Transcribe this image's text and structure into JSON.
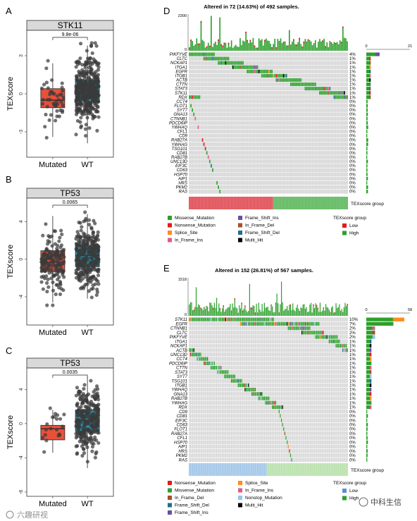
{
  "panels": {
    "A": "A",
    "B": "B",
    "C": "C",
    "D": "D",
    "E": "E"
  },
  "boxplots": [
    {
      "id": "A",
      "title": "STK11",
      "ylabel": "TEXscore",
      "pvalue": "9.8e-06",
      "groups": [
        "Mutated",
        "WT"
      ],
      "yticks": [
        {
          "value": 3,
          "label": "3"
        },
        {
          "value": 0,
          "label": "0"
        },
        {
          "value": -3,
          "label": "-3"
        }
      ],
      "ylim": [
        -5,
        5
      ],
      "boxes": [
        {
          "q1": -1.1,
          "median": -0.5,
          "q3": 0.4,
          "lo": -3.4,
          "hi": 2.4,
          "color": "#e8503a",
          "n": 45
        },
        {
          "q1": -0.6,
          "median": 0.2,
          "q3": 1.1,
          "lo": -3.9,
          "hi": 3.8,
          "color": "#2a9bb5",
          "n": 420
        }
      ]
    },
    {
      "id": "B",
      "title": "TP53",
      "ylabel": "TEXscore",
      "pvalue": "0.0065",
      "groups": [
        "Mutated",
        "WT"
      ],
      "yticks": [
        {
          "value": 4,
          "label": "4"
        },
        {
          "value": 0,
          "label": "0"
        },
        {
          "value": -4,
          "label": "-4"
        }
      ],
      "ylim": [
        -7,
        6.5
      ],
      "boxes": [
        {
          "q1": -1.3,
          "median": -0.3,
          "q3": 0.9,
          "lo": -4.6,
          "hi": 4.6,
          "color": "#e8503a",
          "n": 170
        },
        {
          "q1": -0.8,
          "median": 0.4,
          "q3": 1.5,
          "lo": -4.2,
          "hi": 4.8,
          "color": "#2a9bb5",
          "n": 300
        }
      ]
    },
    {
      "id": "C",
      "title": "TP53",
      "ylabel": "TEXscore",
      "pvalue": "0.0035",
      "groups": [
        "Mutated",
        "WT"
      ],
      "yticks": [
        {
          "value": 4,
          "label": "4"
        },
        {
          "value": 0,
          "label": "0"
        },
        {
          "value": -4,
          "label": "-4"
        },
        {
          "value": -8,
          "label": "-8"
        }
      ],
      "ylim": [
        -8.5,
        6.5
      ],
      "boxes": [
        {
          "q1": -1.9,
          "median": -0.6,
          "q3": -0.2,
          "lo": -3.4,
          "hi": 1.6,
          "color": "#e8503a",
          "n": 20
        },
        {
          "q1": -0.9,
          "median": 0.4,
          "q3": 1.6,
          "lo": -5.2,
          "hi": 5.5,
          "color": "#2a9bb5",
          "n": 280
        }
      ]
    }
  ],
  "oncoplots": [
    {
      "id": "D",
      "title": "Altered in 72 (14.63%) of 492 samples.",
      "top_max": "2300",
      "top_zero": "0",
      "right_min": "0",
      "right_max": "21",
      "genes": [
        {
          "name": "PIKFYVE",
          "pct": "4%"
        },
        {
          "name": "CLTC",
          "pct": "1%"
        },
        {
          "name": "NCKAP1",
          "pct": "1%"
        },
        {
          "name": "ITGA1",
          "pct": "1%"
        },
        {
          "name": "EGFR",
          "pct": "1%"
        },
        {
          "name": "ITGB1",
          "pct": "1%"
        },
        {
          "name": "ACTB",
          "pct": "1%"
        },
        {
          "name": "CTTN",
          "pct": "1%"
        },
        {
          "name": "STAT3",
          "pct": "1%"
        },
        {
          "name": "STK11",
          "pct": "1%"
        },
        {
          "name": "RDX",
          "pct": "1%"
        },
        {
          "name": "CCT4",
          "pct": "0%"
        },
        {
          "name": "FLOT1",
          "pct": "0%"
        },
        {
          "name": "SYT7",
          "pct": "0%"
        },
        {
          "name": "GNA13",
          "pct": "0%"
        },
        {
          "name": "CTNNB1",
          "pct": "0%"
        },
        {
          "name": "PDCD6IP",
          "pct": "0%"
        },
        {
          "name": "YWHAQ",
          "pct": "0%"
        },
        {
          "name": "CFL1",
          "pct": "0%"
        },
        {
          "name": "CD9",
          "pct": "0%"
        },
        {
          "name": "RAB27A",
          "pct": "0%"
        },
        {
          "name": "YWHAG",
          "pct": "0%"
        },
        {
          "name": "TSG101",
          "pct": "0%"
        },
        {
          "name": "CD81",
          "pct": "0%"
        },
        {
          "name": "RAB27B",
          "pct": "0%"
        },
        {
          "name": "UNC13D",
          "pct": "0%"
        },
        {
          "name": "EIF3C",
          "pct": "0%"
        },
        {
          "name": "CD63",
          "pct": "0%"
        },
        {
          "name": "HSP70",
          "pct": "0%"
        },
        {
          "name": "AIP1",
          "pct": "0%"
        },
        {
          "name": "HRS",
          "pct": "0%"
        },
        {
          "name": "PKM2",
          "pct": "0%"
        },
        {
          "name": "RAS",
          "pct": "0%"
        }
      ],
      "group_label": "TEXscore group",
      "group_split": 0.53,
      "group_colors": [
        "#e04a52",
        "#5bb75b"
      ],
      "legend": [
        {
          "label": "Missense_Mutation",
          "color": "#2ca02c"
        },
        {
          "label": "Frame_Shift_Ins",
          "color": "#6a4fa0"
        },
        {
          "label": "Nonsense_Mutation",
          "color": "#e41a1c"
        },
        {
          "label": "In_Frame_Del",
          "color": "#a0522d"
        },
        {
          "label": "Splice_Site",
          "color": "#ff8c1a"
        },
        {
          "label": "Frame_Shift_Del",
          "color": "#1f6f8b"
        },
        {
          "label": "In_Frame_Ins",
          "color": "#e05a8a"
        },
        {
          "label": "Multi_Hit",
          "color": "#000000"
        }
      ],
      "group_legend_title": "TEXscore group",
      "group_legend": [
        {
          "label": "Low",
          "color": "#e41a1c"
        },
        {
          "label": "High",
          "color": "#2ca02c"
        }
      ]
    },
    {
      "id": "E",
      "title": "Altered in 152 (26.81%) of 567 samples.",
      "top_max": "1518",
      "top_zero": "0",
      "right_min": "0",
      "right_max": "58",
      "genes": [
        {
          "name": "STK11",
          "pct": "10%"
        },
        {
          "name": "EGFR",
          "pct": "7%"
        },
        {
          "name": "CTNNB1",
          "pct": "2%"
        },
        {
          "name": "CLTC",
          "pct": "2%"
        },
        {
          "name": "PIKFYVE",
          "pct": "2%"
        },
        {
          "name": "ITGA1",
          "pct": "1%"
        },
        {
          "name": "NCKAP1",
          "pct": "1%"
        },
        {
          "name": "ACTB",
          "pct": "1%"
        },
        {
          "name": "UNC13D",
          "pct": "1%"
        },
        {
          "name": "CCT4",
          "pct": "1%"
        },
        {
          "name": "PDCD6IP",
          "pct": "1%"
        },
        {
          "name": "CTTN",
          "pct": "1%"
        },
        {
          "name": "STAT3",
          "pct": "1%"
        },
        {
          "name": "SYT7",
          "pct": "1%"
        },
        {
          "name": "TSG101",
          "pct": "1%"
        },
        {
          "name": "ITGB1",
          "pct": "1%"
        },
        {
          "name": "YWHAQ",
          "pct": "1%"
        },
        {
          "name": "GNA13",
          "pct": "1%"
        },
        {
          "name": "RAB27B",
          "pct": "1%"
        },
        {
          "name": "YWHAG",
          "pct": "1%"
        },
        {
          "name": "RDX",
          "pct": "1%"
        },
        {
          "name": "CD9",
          "pct": "0%"
        },
        {
          "name": "CD81",
          "pct": "0%"
        },
        {
          "name": "EIF3C",
          "pct": "0%"
        },
        {
          "name": "CD63",
          "pct": "0%"
        },
        {
          "name": "FLOT1",
          "pct": "0%"
        },
        {
          "name": "RAB27A",
          "pct": "0%"
        },
        {
          "name": "CFL1",
          "pct": "0%"
        },
        {
          "name": "HSP70",
          "pct": "0%"
        },
        {
          "name": "AIP1",
          "pct": "0%"
        },
        {
          "name": "HRS",
          "pct": "0%"
        },
        {
          "name": "PKM2",
          "pct": "0%"
        },
        {
          "name": "RAS",
          "pct": "0%"
        }
      ],
      "group_label": "TEXscore group",
      "group_split": 0.49,
      "group_colors": [
        "#9ec4e8",
        "#b5e0a8"
      ],
      "legend": [
        {
          "label": "Nonsense_Mutation",
          "color": "#e41a1c"
        },
        {
          "label": "Splice_Site",
          "color": "#ff8c1a"
        },
        {
          "label": "Missense_Mutation",
          "color": "#2ca02c"
        },
        {
          "label": "In_Frame_Ins",
          "color": "#e05a8a"
        },
        {
          "label": "In_Frame_Del",
          "color": "#a0522d"
        },
        {
          "label": "Nonstop_Mutation",
          "color": "#8fc9e8"
        },
        {
          "label": "Frame_Shift_Del",
          "color": "#1f6f8b"
        },
        {
          "label": "Multi_Hit",
          "color": "#000000"
        },
        {
          "label": "Frame_Shift_Ins",
          "color": "#6a4fa0"
        }
      ],
      "group_legend_title": "TEXscore group",
      "group_legend": [
        {
          "label": "Low",
          "color": "#5b8fd6"
        },
        {
          "label": "High",
          "color": "#2ca02c"
        }
      ]
    }
  ],
  "watermarks": {
    "left": "六趣研视",
    "right": "中科生信"
  },
  "chart_data": [
    {
      "type": "box",
      "title": "STK11",
      "ylabel": "TEXscore",
      "categories": [
        "Mutated",
        "WT"
      ],
      "pvalue": "9.8e-06"
    },
    {
      "type": "box",
      "title": "TP53",
      "ylabel": "TEXscore",
      "categories": [
        "Mutated",
        "WT"
      ],
      "pvalue": "0.0065"
    },
    {
      "type": "box",
      "title": "TP53",
      "ylabel": "TEXscore",
      "categories": [
        "Mutated",
        "WT"
      ],
      "pvalue": "0.0035"
    },
    {
      "type": "heatmap",
      "title": "Altered in 72 (14.63%) of 492 samples."
    },
    {
      "type": "heatmap",
      "title": "Altered in 152 (26.81%) of 567 samples."
    }
  ]
}
